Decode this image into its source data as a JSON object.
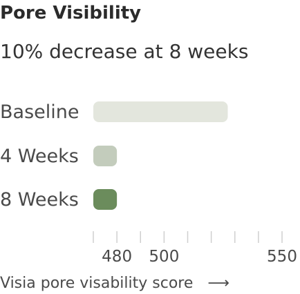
{
  "chart_data": {
    "type": "bar",
    "orientation": "horizontal",
    "title": "Pore Visibility",
    "subtitle": "10% decrease at 8 weeks",
    "categories": [
      "Baseline",
      "4 Weeks",
      "8 Weeks"
    ],
    "values": [
      527,
      480,
      480
    ],
    "colors": [
      "#e3e6dd",
      "#c3ccbc",
      "#6b8c5c"
    ],
    "xlabel": "Visia pore visability score",
    "xlabel_arrow": "⟶",
    "xticks": [
      {
        "value": 470,
        "label": ""
      },
      {
        "value": 480,
        "label": "480"
      },
      {
        "value": 490,
        "label": ""
      },
      {
        "value": 500,
        "label": "500"
      },
      {
        "value": 510,
        "label": ""
      },
      {
        "value": 520,
        "label": ""
      },
      {
        "value": 530,
        "label": ""
      },
      {
        "value": 540,
        "label": ""
      },
      {
        "value": 550,
        "label": "550"
      }
    ],
    "xlim": [
      470,
      550
    ],
    "grid": false
  }
}
